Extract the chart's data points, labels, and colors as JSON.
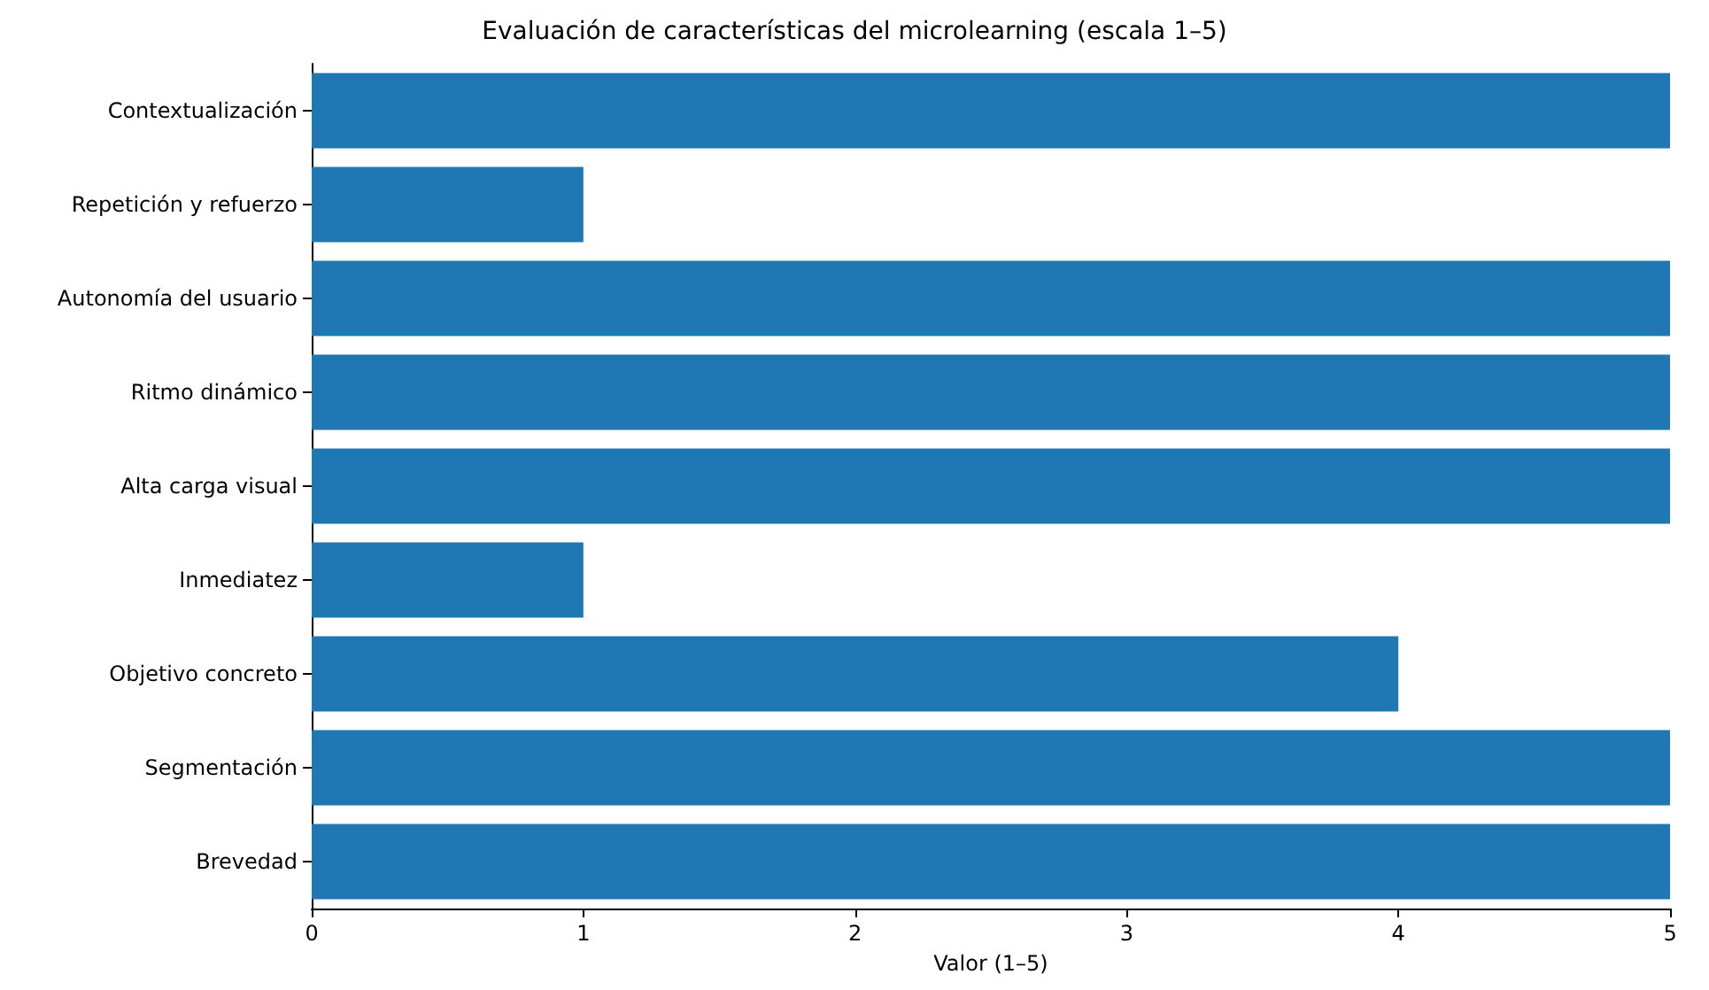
{
  "chart_data": {
    "type": "bar",
    "orientation": "horizontal",
    "title": "Evaluación de características del microlearning (escala 1–5)",
    "xlabel": "Valor (1–5)",
    "categories": [
      "Contextualización",
      "Repetición y refuerzo",
      "Autonomía del usuario",
      "Ritmo dinámico",
      "Alta carga visual",
      "Inmediatez",
      "Objetivo concreto",
      "Segmentación",
      "Brevedad"
    ],
    "values": [
      5,
      1,
      5,
      5,
      5,
      1,
      4,
      5,
      5
    ],
    "color": "#1f77b4",
    "xlim": [
      0,
      5
    ],
    "xticks": [
      0,
      1,
      2,
      3,
      4,
      5
    ]
  }
}
